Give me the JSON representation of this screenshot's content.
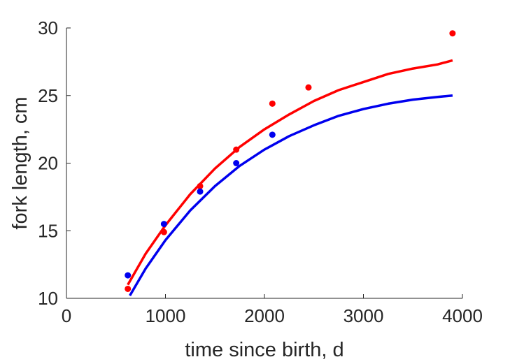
{
  "chart_data": {
    "type": "scatter",
    "title": "",
    "xlabel": "time since birth, d",
    "ylabel": "fork length, cm",
    "xlim": [
      0,
      4000
    ],
    "ylim": [
      10,
      30
    ],
    "xticks": [
      0,
      1000,
      2000,
      3000,
      4000
    ],
    "yticks": [
      10,
      15,
      20,
      25,
      30
    ],
    "grid": false,
    "legend": "none",
    "series": [
      {
        "color": "#ff0000",
        "points": [
          {
            "x": 620,
            "y": 10.7
          },
          {
            "x": 985,
            "y": 14.9
          },
          {
            "x": 1350,
            "y": 18.3
          },
          {
            "x": 1715,
            "y": 21.0
          },
          {
            "x": 2080,
            "y": 24.4
          },
          {
            "x": 2445,
            "y": 25.6
          },
          {
            "x": 3900,
            "y": 29.6
          }
        ],
        "curve": [
          {
            "x": 620,
            "y": 11.0
          },
          {
            "x": 800,
            "y": 13.3
          },
          {
            "x": 1000,
            "y": 15.4
          },
          {
            "x": 1250,
            "y": 17.7
          },
          {
            "x": 1500,
            "y": 19.6
          },
          {
            "x": 1750,
            "y": 21.2
          },
          {
            "x": 2000,
            "y": 22.5
          },
          {
            "x": 2250,
            "y": 23.6
          },
          {
            "x": 2500,
            "y": 24.6
          },
          {
            "x": 2750,
            "y": 25.4
          },
          {
            "x": 3000,
            "y": 26.0
          },
          {
            "x": 3250,
            "y": 26.6
          },
          {
            "x": 3500,
            "y": 27.0
          },
          {
            "x": 3750,
            "y": 27.3
          },
          {
            "x": 3900,
            "y": 27.6
          }
        ]
      },
      {
        "color": "#0000ee",
        "points": [
          {
            "x": 620,
            "y": 11.7
          },
          {
            "x": 985,
            "y": 15.5
          },
          {
            "x": 1350,
            "y": 17.9
          },
          {
            "x": 1715,
            "y": 20.0
          },
          {
            "x": 2080,
            "y": 22.1
          }
        ],
        "curve": [
          {
            "x": 640,
            "y": 10.2
          },
          {
            "x": 800,
            "y": 12.2
          },
          {
            "x": 1000,
            "y": 14.3
          },
          {
            "x": 1250,
            "y": 16.5
          },
          {
            "x": 1500,
            "y": 18.3
          },
          {
            "x": 1750,
            "y": 19.8
          },
          {
            "x": 2000,
            "y": 21.0
          },
          {
            "x": 2250,
            "y": 22.0
          },
          {
            "x": 2500,
            "y": 22.8
          },
          {
            "x": 2750,
            "y": 23.5
          },
          {
            "x": 3000,
            "y": 24.0
          },
          {
            "x": 3250,
            "y": 24.4
          },
          {
            "x": 3500,
            "y": 24.7
          },
          {
            "x": 3750,
            "y": 24.9
          },
          {
            "x": 3900,
            "y": 25.0
          }
        ]
      }
    ]
  }
}
